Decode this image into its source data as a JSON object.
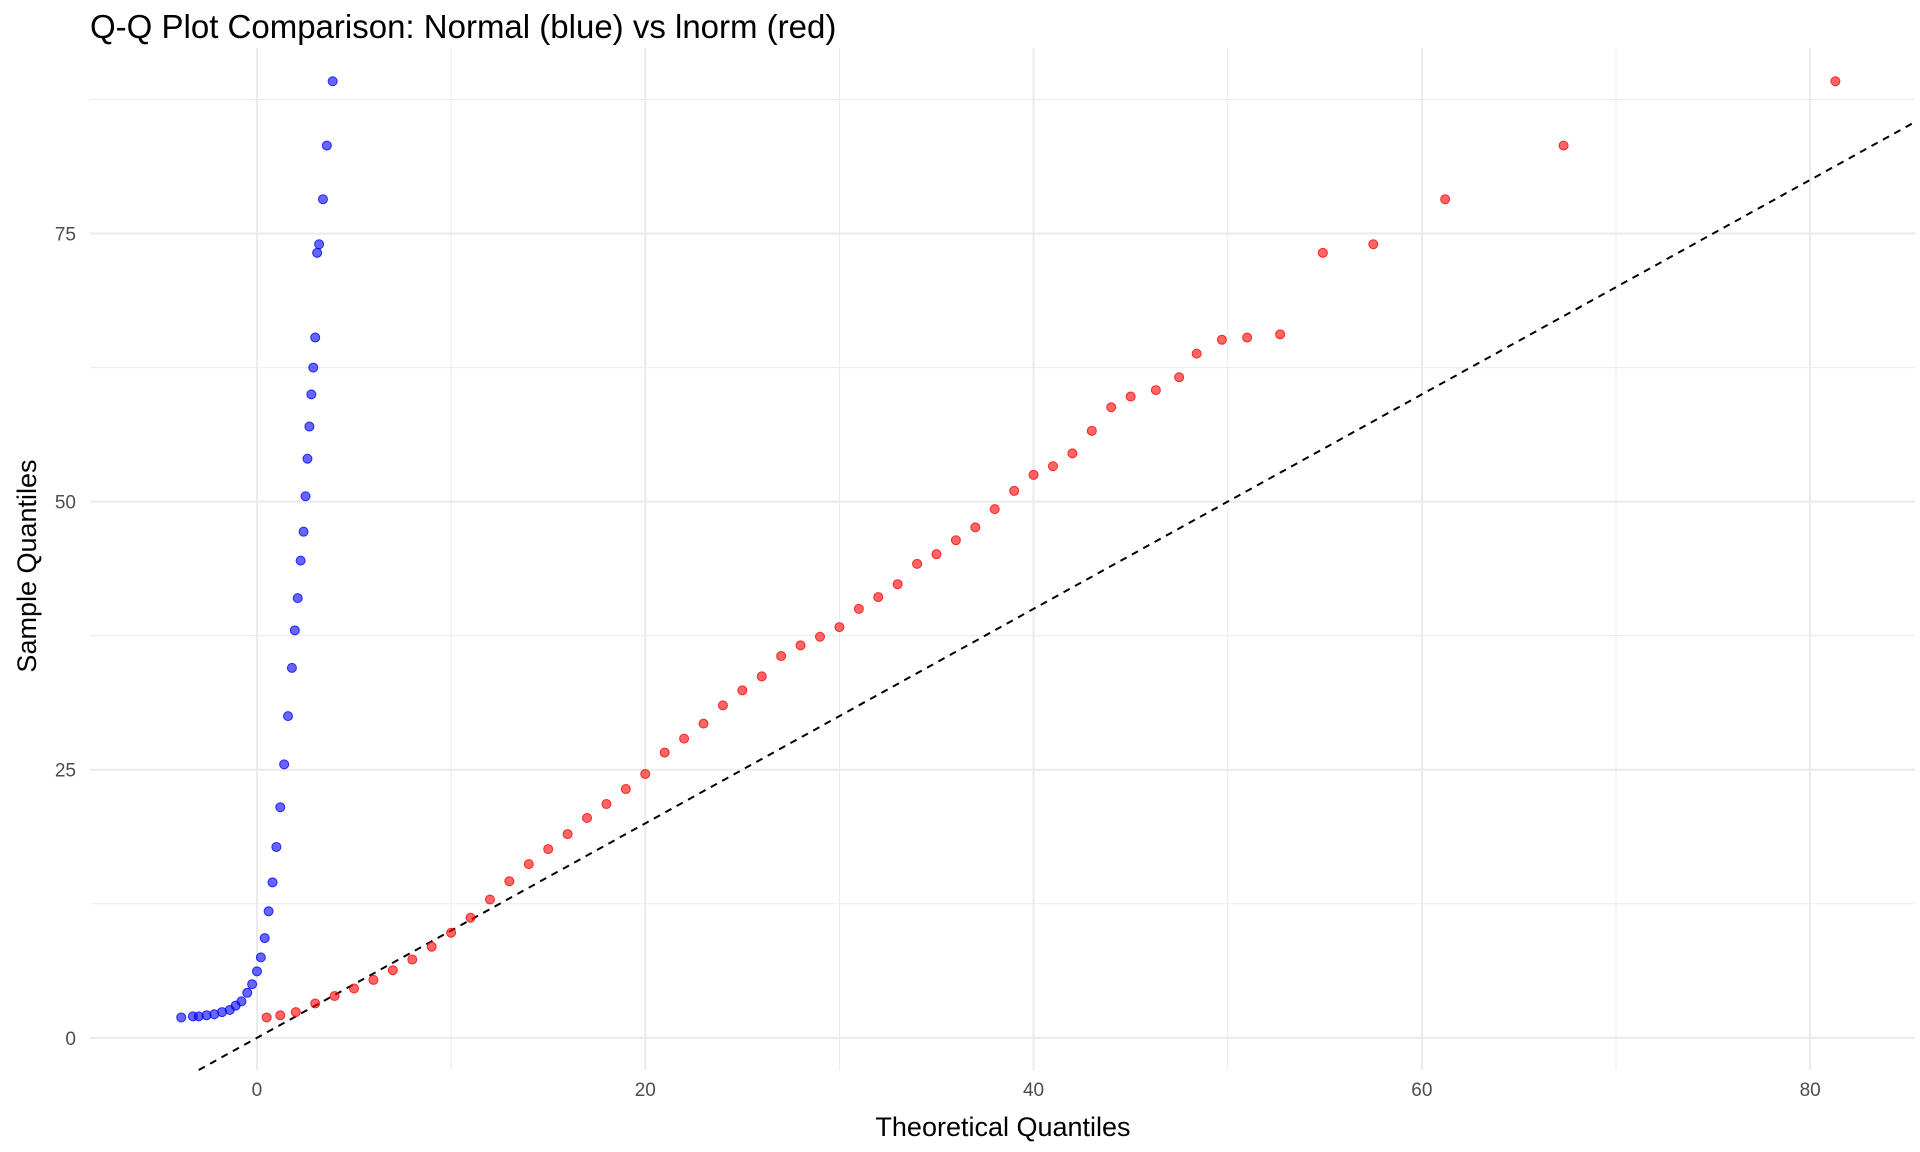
{
  "chart_data": {
    "type": "scatter",
    "title": "Q-Q Plot Comparison: Normal (blue) vs lnorm (red)",
    "xlabel": "Theoretical Quantiles",
    "ylabel": "Sample Quantiles",
    "xlim": [
      -8.6,
      85.4
    ],
    "ylim": [
      -3.0,
      92.3
    ],
    "x_ticks": [
      0,
      20,
      40,
      60,
      80
    ],
    "y_ticks": [
      0,
      25,
      50,
      75
    ],
    "grid": true,
    "background": "#ffffff",
    "grid_color": "#ebebeb",
    "reference_line": {
      "style": "dashed",
      "color": "#000000",
      "slope": 1,
      "intercept": 0
    },
    "series": [
      {
        "color": "#0000ff",
        "x": [
          -3.9,
          -3.3,
          -3.0,
          -2.6,
          -2.2,
          -1.8,
          -1.4,
          -1.1,
          -0.8,
          -0.5,
          -0.25,
          0.0,
          0.2,
          0.4,
          0.6,
          0.8,
          1.0,
          1.2,
          1.4,
          1.6,
          1.8,
          1.95,
          2.1,
          2.25,
          2.4,
          2.5,
          2.6,
          2.7,
          2.8,
          2.9,
          3.0,
          3.1,
          3.2,
          3.4,
          3.6,
          3.9
        ],
        "y": [
          1.9,
          2.0,
          2.0,
          2.1,
          2.2,
          2.4,
          2.6,
          3.0,
          3.4,
          4.2,
          5.0,
          6.2,
          7.5,
          9.3,
          11.8,
          14.5,
          17.8,
          21.5,
          25.5,
          30.0,
          34.5,
          38.0,
          41.0,
          44.5,
          47.2,
          50.5,
          54.0,
          57.0,
          60.0,
          62.5,
          65.3,
          73.2,
          74.0,
          78.2,
          83.2,
          89.2
        ]
      },
      {
        "color": "#ff0000",
        "x": [
          0.5,
          1.2,
          2.0,
          3.0,
          4.0,
          5.0,
          6.0,
          7.0,
          8.0,
          9.0,
          10.0,
          11.0,
          12.0,
          13.0,
          14.0,
          15.0,
          16.0,
          17.0,
          18.0,
          19.0,
          20.0,
          21.0,
          22.0,
          23.0,
          24.0,
          25.0,
          26.0,
          27.0,
          28.0,
          29.0,
          30.0,
          31.0,
          32.0,
          33.0,
          34.0,
          35.0,
          36.0,
          37.0,
          38.0,
          39.0,
          40.0,
          41.0,
          42.0,
          43.0,
          44.0,
          45.0,
          46.3,
          47.5,
          48.4,
          49.7,
          51.0,
          52.7,
          54.9,
          57.5,
          61.2,
          67.3,
          81.3
        ],
        "y": [
          1.9,
          2.1,
          2.4,
          3.2,
          3.9,
          4.6,
          5.4,
          6.3,
          7.3,
          8.5,
          9.8,
          11.2,
          12.9,
          14.6,
          16.2,
          17.6,
          19.0,
          20.5,
          21.8,
          23.2,
          24.6,
          26.6,
          27.9,
          29.3,
          31.0,
          32.4,
          33.7,
          35.6,
          36.6,
          37.4,
          38.3,
          40.0,
          41.1,
          42.3,
          44.2,
          45.1,
          46.4,
          47.6,
          49.3,
          51.0,
          52.5,
          53.3,
          54.5,
          56.6,
          58.8,
          59.8,
          60.4,
          61.6,
          63.8,
          65.1,
          65.3,
          65.6,
          73.2,
          74.0,
          78.2,
          83.2,
          89.2
        ]
      }
    ]
  }
}
